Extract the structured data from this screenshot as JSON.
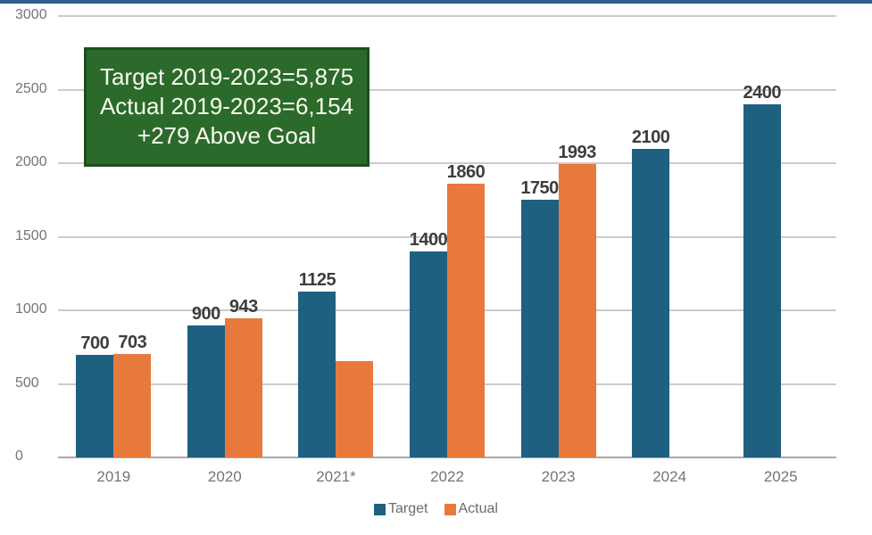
{
  "colors": {
    "top_line": "#2F5D8C",
    "target_bar": "#1F5F80",
    "actual_bar": "#E8793C",
    "gridline": "#CBCBCB",
    "baseline": "#A9A9A9",
    "axis_text": "#757575",
    "value_label_text": "#3D3D3D",
    "annotation_bg": "#2B6A2B",
    "annotation_border": "#1F4D1F",
    "annotation_text": "#FAFAEC"
  },
  "chart_data": {
    "type": "bar",
    "title": "",
    "xlabel": "",
    "ylabel": "",
    "categories": [
      "2019",
      "2020",
      "2021*",
      "2022",
      "2023",
      "2024",
      "2025"
    ],
    "series": [
      {
        "name": "Target",
        "color": "#1F5F80",
        "values": [
          700,
          900,
          1125,
          1400,
          1750,
          2100,
          2400
        ],
        "labels": [
          "700",
          "900",
          "1125",
          "1400",
          "1750",
          "2100",
          "2400"
        ]
      },
      {
        "name": "Actual",
        "color": "#E8793C",
        "values": [
          703,
          943,
          655,
          1860,
          1993,
          null,
          null
        ],
        "labels": [
          "703",
          "943",
          "",
          "1860",
          "1993",
          "",
          ""
        ]
      }
    ],
    "ylim": [
      0,
      3000
    ],
    "yticks": [
      0,
      500,
      1000,
      1500,
      2000,
      2500,
      3000
    ],
    "grid": true,
    "legend_position": "bottom",
    "annotation": {
      "lines": [
        "Target 2019-2023=5,875",
        "Actual 2019-2023=6,154",
        "+279 Above Goal"
      ]
    }
  }
}
